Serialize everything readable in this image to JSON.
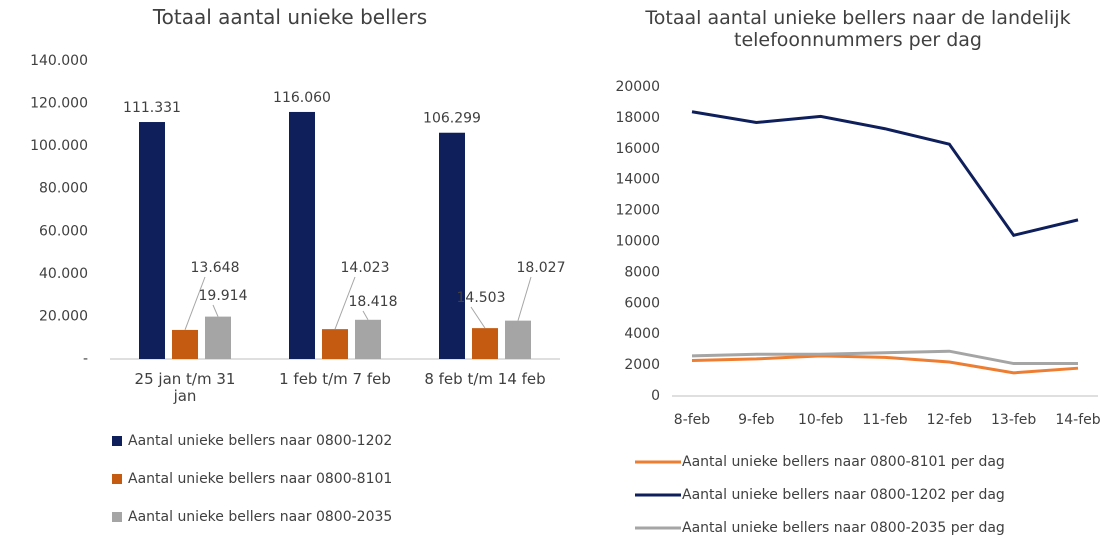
{
  "chart_data": [
    {
      "type": "bar",
      "title": "Totaal aantal unieke bellers",
      "categories": [
        "25 jan t/m 31 jan",
        "1 feb t/m 7 feb",
        "8 feb t/m 14 feb"
      ],
      "series": [
        {
          "name": "Aantal unieke bellers naar 0800-1202",
          "color": "#0e1f5b",
          "values": [
            111331,
            116060,
            106299
          ],
          "value_labels": [
            "111.331",
            "116.060",
            "106.299"
          ]
        },
        {
          "name": "Aantal unieke bellers naar 0800-8101",
          "color": "#c55a11",
          "values": [
            13648,
            14023,
            14503
          ],
          "value_labels": [
            "13.648",
            "14.023",
            "14.503"
          ]
        },
        {
          "name": "Aantal unieke bellers naar 0800-2035",
          "color": "#a5a5a5",
          "values": [
            19914,
            18418,
            18027
          ],
          "value_labels": [
            "19.914",
            "18.418",
            "18.027"
          ]
        }
      ],
      "ylim": [
        0,
        140000
      ],
      "yticks": [
        {
          "value": 0,
          "label": "-"
        },
        {
          "value": 20000,
          "label": "20.000"
        },
        {
          "value": 40000,
          "label": "40.000"
        },
        {
          "value": 60000,
          "label": "60.000"
        },
        {
          "value": 80000,
          "label": "80.000"
        },
        {
          "value": 100000,
          "label": "100.000"
        },
        {
          "value": 120000,
          "label": "120.000"
        },
        {
          "value": 140000,
          "label": "140.000"
        }
      ],
      "grid": false
    },
    {
      "type": "line",
      "title": "Totaal aantal unieke bellers naar de landelijk telefoonnummers per dag",
      "categories": [
        "8-feb",
        "9-feb",
        "10-feb",
        "11-feb",
        "12-feb",
        "13-feb",
        "14-feb"
      ],
      "series": [
        {
          "name": "Aantal unieke bellers naar 0800-8101 per dag",
          "color": "#ed7d31",
          "values": [
            2300,
            2400,
            2600,
            2500,
            2200,
            1500,
            1800
          ]
        },
        {
          "name": "Aantal unieke bellers naar 0800-1202 per dag",
          "color": "#0e1f5b",
          "values": [
            18400,
            17700,
            18100,
            17300,
            16300,
            10400,
            11400
          ]
        },
        {
          "name": "Aantal unieke bellers naar 0800-2035 per dag",
          "color": "#a5a5a5",
          "values": [
            2600,
            2700,
            2700,
            2800,
            2900,
            2100,
            2100
          ]
        }
      ],
      "ylim": [
        0,
        20000
      ],
      "yticks": [
        0,
        2000,
        4000,
        6000,
        8000,
        10000,
        12000,
        14000,
        16000,
        18000,
        20000
      ],
      "grid": false
    }
  ]
}
